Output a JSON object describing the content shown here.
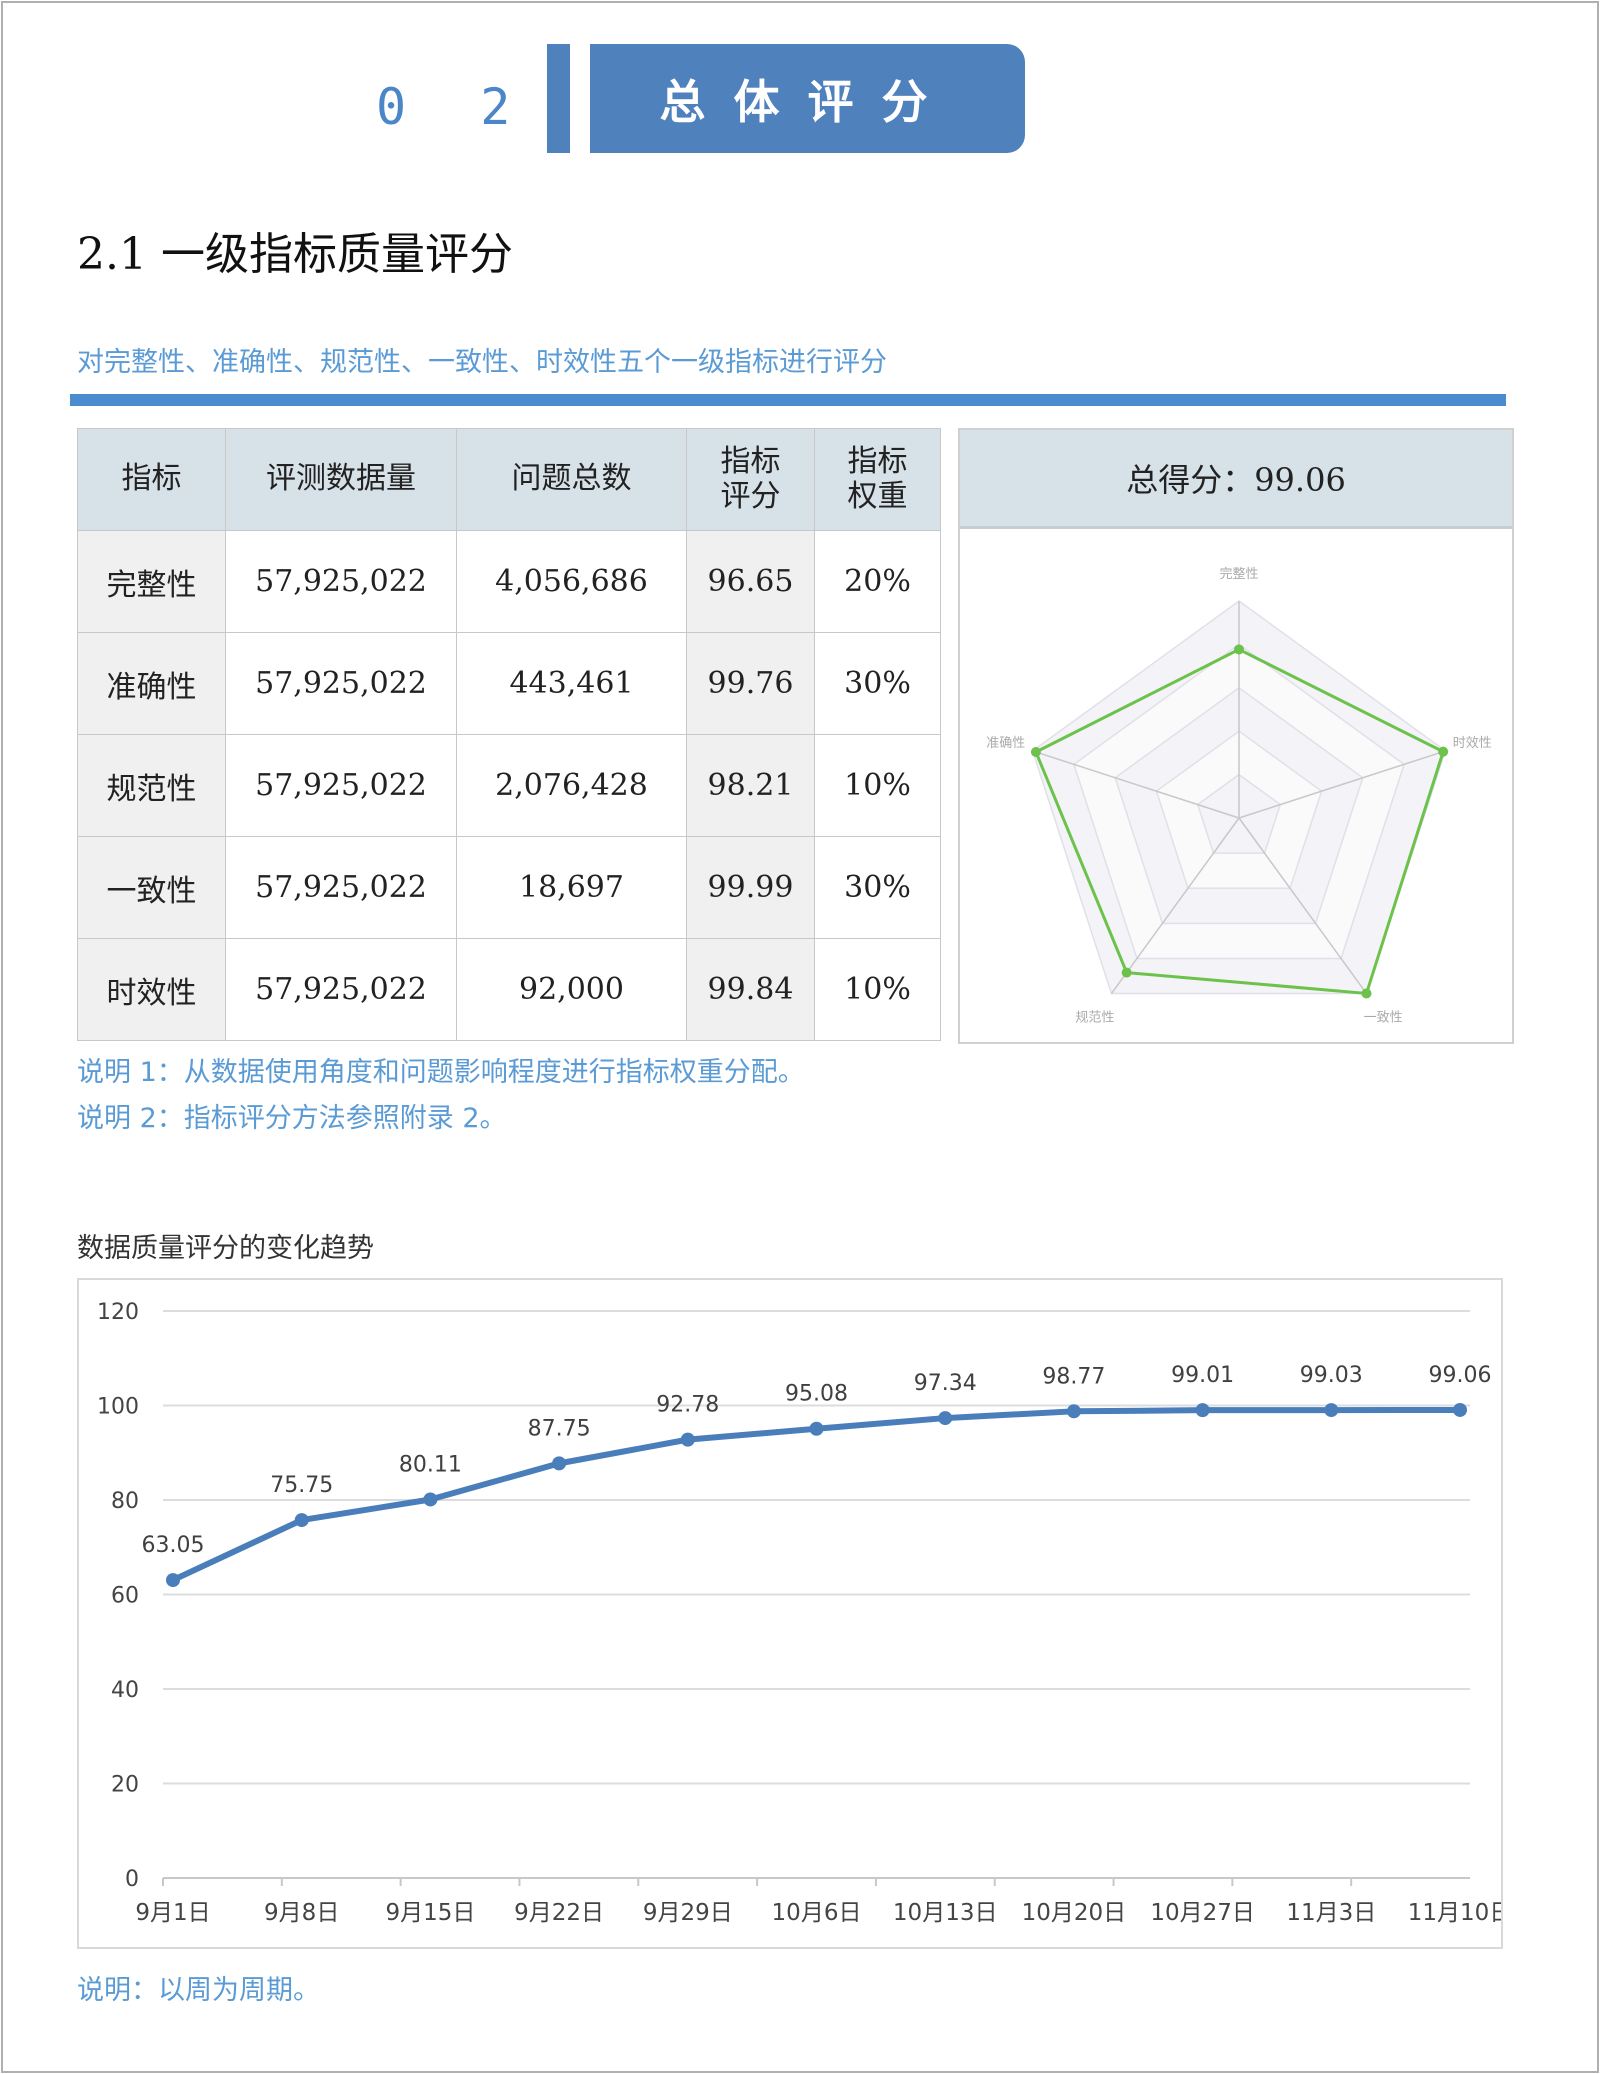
{
  "section": {
    "number": "0 2",
    "title": "总体评分"
  },
  "heading": "2.1 一级指标质量评分",
  "subtitle": "对完整性、准确性、规范性、一致性、时效性五个一级指标进行评分",
  "colors": {
    "accent": "#4f81bd",
    "note_text": "#5b9bd5",
    "radar_line": "#6cc24a",
    "header_bg": "#d6e1e8"
  },
  "table": {
    "headers": [
      "指标",
      "评测数据量",
      "问题总数",
      "指标\n评分",
      "指标\n权重"
    ],
    "rows": [
      [
        "完整性",
        "57,925,022",
        "4,056,686",
        "96.65",
        "20%"
      ],
      [
        "准确性",
        "57,925,022",
        "443,461",
        "99.76",
        "30%"
      ],
      [
        "规范性",
        "57,925,022",
        "2,076,428",
        "98.21",
        "10%"
      ],
      [
        "一致性",
        "57,925,022",
        "18,697",
        "99.99",
        "30%"
      ],
      [
        "时效性",
        "57,925,022",
        "92,000",
        "99.84",
        "10%"
      ]
    ]
  },
  "total_score": "总得分：99.06",
  "notes": [
    "说明 1：从数据使用角度和问题影响程度进行指标权重分配。",
    "说明 2：指标评分方法参照附录 2。"
  ],
  "chart_data": [
    {
      "type": "radar",
      "axes": [
        "完整性",
        "时效性",
        "一致性",
        "规范性",
        "准确性"
      ],
      "values": [
        96.65,
        99.84,
        99.99,
        98.21,
        99.76
      ],
      "range": [
        85,
        100
      ],
      "grid_levels": 5
    },
    {
      "type": "line",
      "title": "数据质量评分的变化趋势",
      "categories": [
        "9月1日",
        "9月8日",
        "9月15日",
        "9月22日",
        "9月29日",
        "10月6日",
        "10月13日",
        "10月20日",
        "10月27日",
        "11月3日",
        "11月10日"
      ],
      "values": [
        63.05,
        75.75,
        80.11,
        87.75,
        92.78,
        95.08,
        97.34,
        98.77,
        99.01,
        99.03,
        99.06
      ],
      "data_labels": [
        "63.05",
        "75.75",
        "80.11",
        "87.75",
        "92.78",
        "95.08",
        "97.34",
        "98.77",
        "99.01",
        "99.03",
        "99.06"
      ],
      "yticks": [
        "0",
        "20",
        "40",
        "60",
        "80",
        "100",
        "120"
      ],
      "ylim": [
        0,
        120
      ],
      "grid": true,
      "legend": "none"
    }
  ],
  "footer_note": "说明：以周为周期。"
}
